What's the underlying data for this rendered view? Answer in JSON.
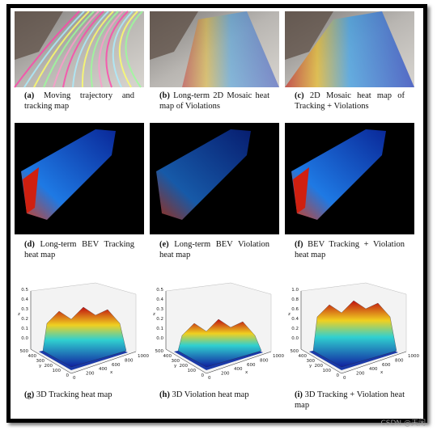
{
  "panels": [
    {
      "label": "(a)",
      "caption": "Moving trajectory and tracking map"
    },
    {
      "label": "(b)",
      "caption": "Long-term 2D Mosaic heat map of Violations"
    },
    {
      "label": "(c)",
      "caption": "2D Mosaic heat map of Tracking + Violations"
    },
    {
      "label": "(d)",
      "caption": "Long-term BEV Tracking heat map"
    },
    {
      "label": "(e)",
      "caption": "Long-term BEV Violation heat map"
    },
    {
      "label": "(f)",
      "caption": "BEV Tracking + Violation heat map"
    },
    {
      "label": "(g)",
      "caption": "3D Tracking heat map",
      "z_ticks": [
        "0.0",
        "0.1",
        "0.2",
        "0.3",
        "0.4",
        "0.5"
      ],
      "y_ticks": [
        "0",
        "100",
        "200",
        "300",
        "400",
        "500"
      ],
      "x_ticks": [
        "0",
        "200",
        "400",
        "600",
        "800",
        "1000"
      ],
      "z_label": "z",
      "y_label": "y",
      "x_label": "x"
    },
    {
      "label": "(h)",
      "caption": "3D Violation heat map",
      "z_ticks": [
        "0.0",
        "0.1",
        "0.2",
        "0.3",
        "0.4",
        "0.5"
      ],
      "y_ticks": [
        "0",
        "100",
        "200",
        "300",
        "400",
        "500"
      ],
      "x_ticks": [
        "0",
        "200",
        "400",
        "600",
        "800",
        "1000"
      ],
      "z_label": "z",
      "y_label": "y",
      "x_label": "x"
    },
    {
      "label": "(i)",
      "caption": "3D Tracking + Violation heat map",
      "z_ticks": [
        "0.0",
        "0.2",
        "0.4",
        "0.6",
        "0.8",
        "1.0"
      ],
      "y_ticks": [
        "0",
        "100",
        "200",
        "300",
        "400",
        "500"
      ],
      "x_ticks": [
        "0",
        "200",
        "400",
        "600",
        "800",
        "1000"
      ],
      "z_label": "z",
      "y_label": "y",
      "x_label": "x"
    }
  ],
  "watermark": "CSDN @天闲"
}
